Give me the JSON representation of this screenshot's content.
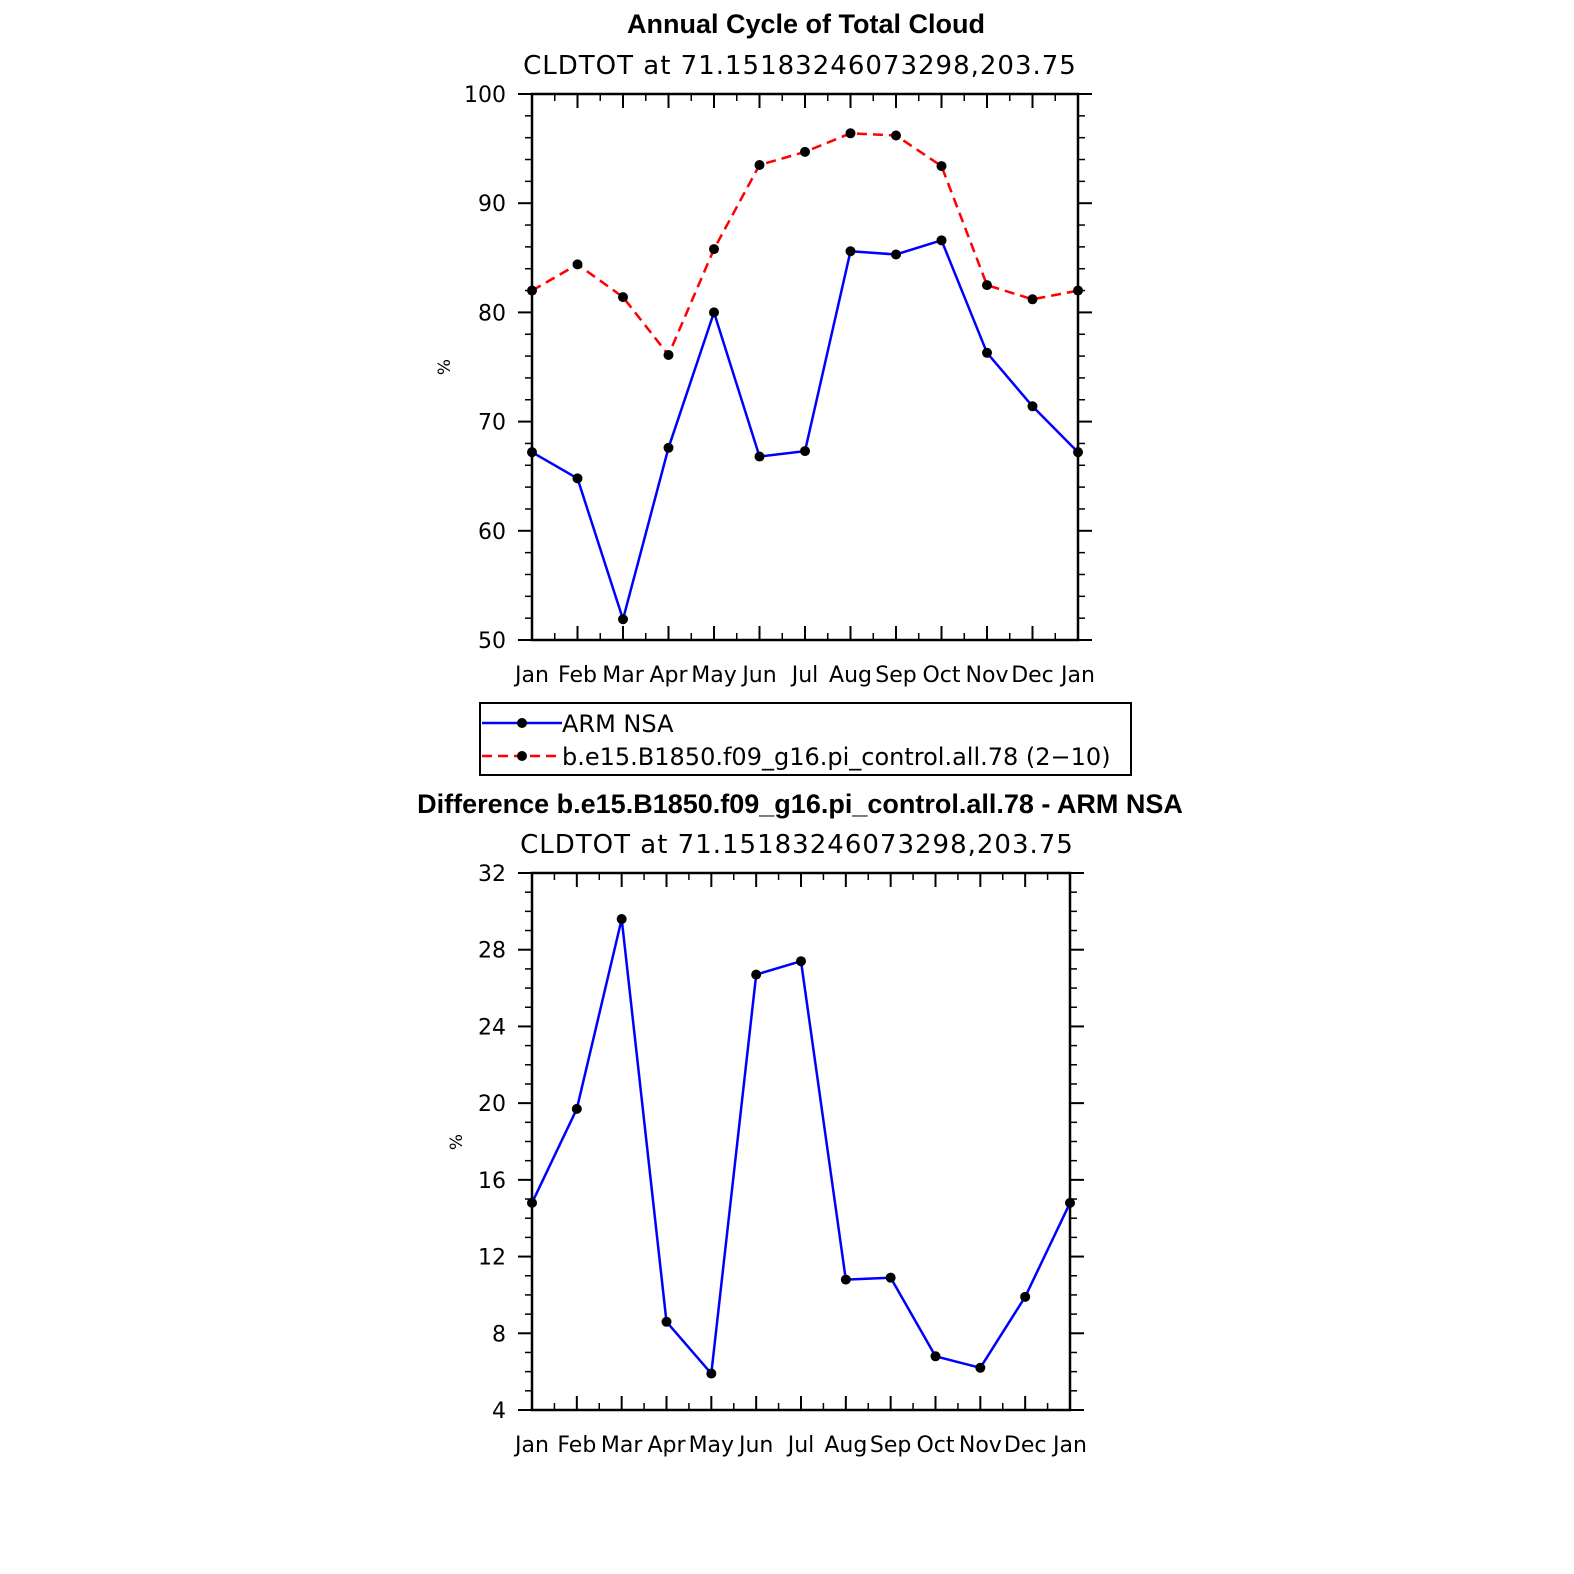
{
  "chart_data": [
    {
      "type": "line",
      "title": "Annual Cycle of Total Cloud",
      "subtitle": "CLDTOT at 71.15183246073298,203.75",
      "ylabel": "%",
      "xlabel": "",
      "categories": [
        "Jan",
        "Feb",
        "Mar",
        "Apr",
        "May",
        "Jun",
        "Jul",
        "Aug",
        "Sep",
        "Oct",
        "Nov",
        "Dec",
        "Jan"
      ],
      "ylim": [
        50,
        100
      ],
      "yticks": [
        50,
        60,
        70,
        80,
        90,
        100
      ],
      "grid": false,
      "legend_position": "bottom",
      "series": [
        {
          "name": "ARM NSA",
          "color": "#0000ff",
          "dash": "solid",
          "marker": "circle",
          "values": [
            67.2,
            64.8,
            51.9,
            67.6,
            80.0,
            66.8,
            67.3,
            85.6,
            85.3,
            86.6,
            76.3,
            71.4,
            67.2
          ]
        },
        {
          "name": "b.e15.B1850.f09_g16.pi_control.all.78 (2−10)",
          "color": "#ff0000",
          "dash": "dashed",
          "marker": "circle",
          "values": [
            82.0,
            84.4,
            81.4,
            76.1,
            85.8,
            93.5,
            94.7,
            96.4,
            96.2,
            93.4,
            82.5,
            81.2,
            82.0
          ]
        }
      ]
    },
    {
      "type": "line",
      "title": "Difference b.e15.B1850.f09_g16.pi_control.all.78 - ARM NSA",
      "subtitle": "CLDTOT at 71.15183246073298,203.75",
      "ylabel": "%",
      "xlabel": "",
      "categories": [
        "Jan",
        "Feb",
        "Mar",
        "Apr",
        "May",
        "Jun",
        "Jul",
        "Aug",
        "Sep",
        "Oct",
        "Nov",
        "Dec",
        "Jan"
      ],
      "ylim": [
        4,
        32
      ],
      "yticks": [
        4,
        8,
        12,
        16,
        20,
        24,
        28,
        32
      ],
      "grid": false,
      "series": [
        {
          "color": "#0000ff",
          "dash": "solid",
          "marker": "circle",
          "values": [
            14.8,
            19.7,
            29.6,
            8.6,
            5.9,
            26.7,
            27.4,
            10.8,
            10.9,
            6.8,
            6.2,
            9.9,
            14.8
          ]
        }
      ]
    }
  ]
}
